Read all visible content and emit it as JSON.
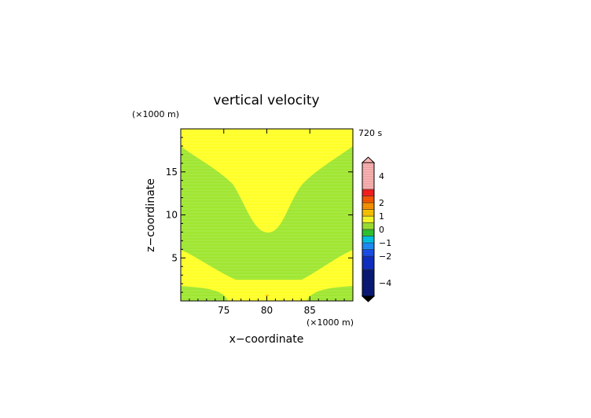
{
  "chart_data": {
    "type": "heatmap",
    "title": "vertical velocity",
    "xlabel": "x−coordinate",
    "ylabel": "z−coordinate",
    "x_unit_label": "(×1000 m)",
    "y_unit_label": "(×1000 m)",
    "time_label": "720 s",
    "xlim": [
      70,
      90
    ],
    "ylim": [
      0,
      20
    ],
    "x_ticks": [
      75,
      80,
      85
    ],
    "y_ticks": [
      5,
      10,
      15
    ],
    "x_tick_labels": [
      "75",
      "80",
      "85"
    ],
    "y_tick_labels": [
      "5",
      "10",
      "15"
    ],
    "colorbar": {
      "range": [
        -5,
        5
      ],
      "tick_values": [
        4,
        2,
        1,
        0,
        -1,
        -2,
        -4
      ],
      "tick_labels": [
        "4",
        "2",
        "1",
        "0",
        "−1",
        "−2",
        "−4"
      ],
      "bands": [
        {
          "from": -5.0,
          "to": -3.0,
          "color": "#0a1a78"
        },
        {
          "from": -3.0,
          "to": -2.0,
          "color": "#1030c8"
        },
        {
          "from": -2.0,
          "to": -1.5,
          "color": "#1a50f0"
        },
        {
          "from": -1.5,
          "to": -1.0,
          "color": "#1e90ff"
        },
        {
          "from": -1.0,
          "to": -0.5,
          "color": "#00c8e8"
        },
        {
          "from": -0.5,
          "to": 0.0,
          "color": "#32c832"
        },
        {
          "from": 0.0,
          "to": 0.5,
          "color": "#a0e632"
        },
        {
          "from": 0.5,
          "to": 1.0,
          "color": "#ffff28"
        },
        {
          "from": 1.0,
          "to": 1.5,
          "color": "#ffc800"
        },
        {
          "from": 1.5,
          "to": 2.0,
          "color": "#ff9600"
        },
        {
          "from": 2.0,
          "to": 2.5,
          "color": "#ff5a00"
        },
        {
          "from": 2.5,
          "to": 3.0,
          "color": "#ff1e1e"
        },
        {
          "from": 3.0,
          "to": 5.0,
          "color": "#ffb4b4"
        }
      ]
    },
    "regions": [
      {
        "name": "background",
        "level": "0 to 0.5",
        "color": "#a0e632"
      },
      {
        "name": "upper-updraft",
        "level": "0.5 to 1",
        "color": "#ffff28"
      },
      {
        "name": "lower-updraft",
        "level": "0.5 to 1",
        "color": "#ffff28"
      }
    ]
  }
}
